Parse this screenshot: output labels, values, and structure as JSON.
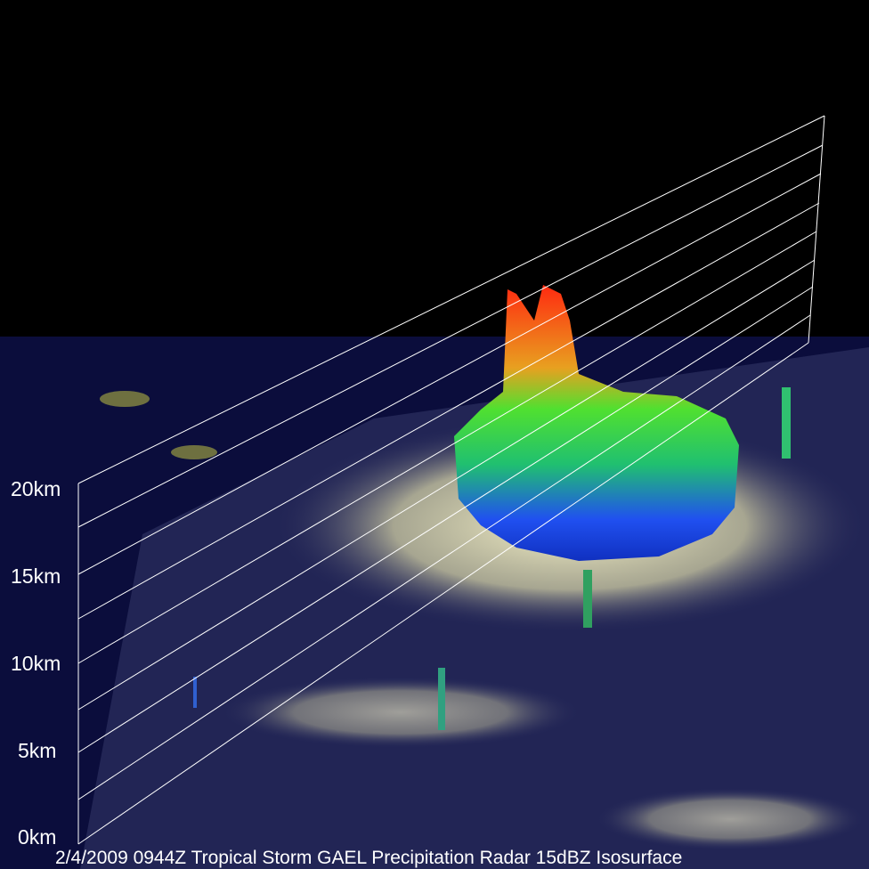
{
  "axis_labels": [
    "20km",
    "15km",
    "10km",
    "5km",
    "0km"
  ],
  "caption": "2/4/2009 0944Z  Tropical Storm GAEL Precipitation Radar 15dBZ Isosurface"
}
